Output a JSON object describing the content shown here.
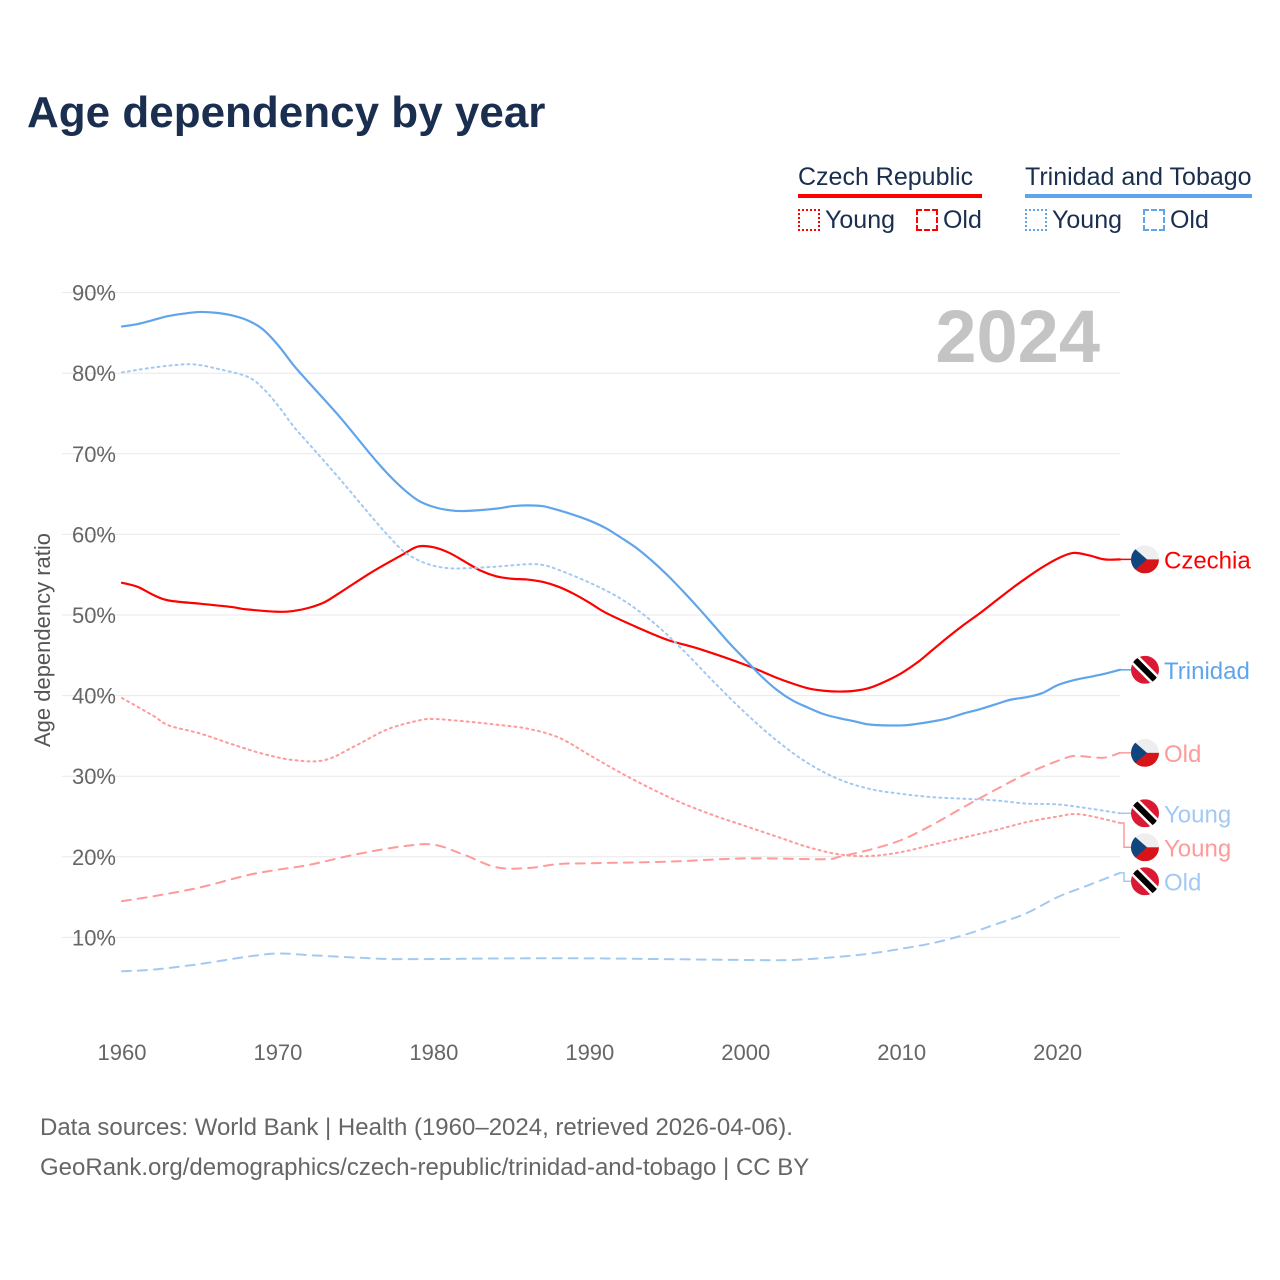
{
  "title": "Age dependency by year",
  "year_badge": "2024",
  "legend": {
    "groups": [
      {
        "name": "Czech Republic",
        "color": "#ff0000",
        "items": [
          {
            "label": "Young",
            "style": "dotted"
          },
          {
            "label": "Old",
            "style": "dashed"
          }
        ]
      },
      {
        "name": "Trinidad and Tobago",
        "color": "#60a5ec",
        "items": [
          {
            "label": "Young",
            "style": "dotted"
          },
          {
            "label": "Old",
            "style": "dashed"
          }
        ]
      }
    ]
  },
  "footer": {
    "line1": "Data sources: World Bank | Health (1960–2024, retrieved 2026-04-06).",
    "line2": "GeoRank.org/demographics/czech-republic/trinidad-and-tobago | CC BY"
  },
  "chart_data": {
    "type": "line",
    "title": "Age dependency by year",
    "xlabel": "",
    "ylabel": "Age dependency ratio",
    "xlim": [
      1960,
      2024
    ],
    "ylim": [
      0,
      90
    ],
    "xticks": [
      1960,
      1970,
      1980,
      1990,
      2000,
      2010,
      2020
    ],
    "yticks": [
      10,
      20,
      30,
      40,
      50,
      60,
      70,
      80,
      90
    ],
    "ytick_labels": [
      "10%",
      "20%",
      "30%",
      "40%",
      "50%",
      "60%",
      "70%",
      "80%",
      "90%"
    ],
    "grid": true,
    "series": [
      {
        "name": "Czechia",
        "label": "Czechia",
        "flag": "cz",
        "color": "#ff0000",
        "style": "solid",
        "width": 2.2,
        "points": [
          [
            1960,
            54
          ],
          [
            1961,
            53.5
          ],
          [
            1962,
            52.5
          ],
          [
            1963,
            51.8
          ],
          [
            1965,
            51.4
          ],
          [
            1967,
            51
          ],
          [
            1968,
            50.7
          ],
          [
            1970,
            50.4
          ],
          [
            1971,
            50.5
          ],
          [
            1972,
            50.9
          ],
          [
            1973,
            51.6
          ],
          [
            1974,
            52.8
          ],
          [
            1976,
            55.3
          ],
          [
            1978,
            57.5
          ],
          [
            1979,
            58.5
          ],
          [
            1980,
            58.4
          ],
          [
            1981,
            57.7
          ],
          [
            1982,
            56.6
          ],
          [
            1983,
            55.5
          ],
          [
            1984,
            54.8
          ],
          [
            1985,
            54.5
          ],
          [
            1986,
            54.4
          ],
          [
            1987,
            54.1
          ],
          [
            1988,
            53.5
          ],
          [
            1989,
            52.6
          ],
          [
            1990,
            51.5
          ],
          [
            1991,
            50.3
          ],
          [
            1993,
            48.5
          ],
          [
            1995,
            46.9
          ],
          [
            1997,
            45.8
          ],
          [
            2000,
            43.8
          ],
          [
            2002,
            42.2
          ],
          [
            2003,
            41.5
          ],
          [
            2004,
            40.9
          ],
          [
            2005,
            40.6
          ],
          [
            2006,
            40.5
          ],
          [
            2007,
            40.6
          ],
          [
            2008,
            41
          ],
          [
            2009,
            41.8
          ],
          [
            2010,
            42.8
          ],
          [
            2011,
            44.1
          ],
          [
            2012,
            45.7
          ],
          [
            2013,
            47.3
          ],
          [
            2014,
            48.8
          ],
          [
            2015,
            50.2
          ],
          [
            2016,
            51.7
          ],
          [
            2017,
            53.2
          ],
          [
            2018,
            54.6
          ],
          [
            2019,
            55.9
          ],
          [
            2020,
            57
          ],
          [
            2021,
            57.7
          ],
          [
            2022,
            57.4
          ],
          [
            2023,
            56.9
          ],
          [
            2024,
            56.9
          ]
        ]
      },
      {
        "name": "Trinidad and Tobago",
        "label": "Trinidad",
        "flag": "tt",
        "color": "#60a5ec",
        "style": "solid",
        "width": 2.2,
        "points": [
          [
            1960,
            85.8
          ],
          [
            1961,
            86.1
          ],
          [
            1962,
            86.6
          ],
          [
            1963,
            87.1
          ],
          [
            1964,
            87.4
          ],
          [
            1965,
            87.6
          ],
          [
            1966,
            87.5
          ],
          [
            1967,
            87.2
          ],
          [
            1968,
            86.6
          ],
          [
            1969,
            85.5
          ],
          [
            1970,
            83.5
          ],
          [
            1971,
            81
          ],
          [
            1972,
            78.8
          ],
          [
            1974,
            74.5
          ],
          [
            1976,
            69.8
          ],
          [
            1977,
            67.6
          ],
          [
            1978,
            65.7
          ],
          [
            1979,
            64.2
          ],
          [
            1980,
            63.4
          ],
          [
            1981,
            63
          ],
          [
            1982,
            62.9
          ],
          [
            1984,
            63.2
          ],
          [
            1985,
            63.5
          ],
          [
            1986,
            63.6
          ],
          [
            1987,
            63.5
          ],
          [
            1988,
            63
          ],
          [
            1989,
            62.4
          ],
          [
            1990,
            61.7
          ],
          [
            1991,
            60.8
          ],
          [
            1992,
            59.6
          ],
          [
            1993,
            58.3
          ],
          [
            1994,
            56.7
          ],
          [
            1995,
            54.9
          ],
          [
            1996,
            52.9
          ],
          [
            1997,
            50.8
          ],
          [
            1998,
            48.6
          ],
          [
            1999,
            46.4
          ],
          [
            2000,
            44.4
          ],
          [
            2001,
            42.4
          ],
          [
            2002,
            40.7
          ],
          [
            2003,
            39.4
          ],
          [
            2004,
            38.5
          ],
          [
            2005,
            37.7
          ],
          [
            2006,
            37.2
          ],
          [
            2007,
            36.8
          ],
          [
            2008,
            36.4
          ],
          [
            2010,
            36.3
          ],
          [
            2011,
            36.5
          ],
          [
            2012,
            36.8
          ],
          [
            2013,
            37.2
          ],
          [
            2014,
            37.8
          ],
          [
            2015,
            38.3
          ],
          [
            2016,
            38.9
          ],
          [
            2017,
            39.5
          ],
          [
            2018,
            39.8
          ],
          [
            2019,
            40.3
          ],
          [
            2020,
            41.3
          ],
          [
            2021,
            41.9
          ],
          [
            2022,
            42.3
          ],
          [
            2023,
            42.7
          ],
          [
            2024,
            43.2
          ]
        ]
      },
      {
        "name": "Czech Republic Old",
        "label": "Old",
        "flag": "cz",
        "color": "#ff9a9a",
        "style": "dashed",
        "width": 2,
        "points": [
          [
            1960,
            14.5
          ],
          [
            1962,
            15.1
          ],
          [
            1965,
            16.2
          ],
          [
            1968,
            17.7
          ],
          [
            1970,
            18.4
          ],
          [
            1972,
            19
          ],
          [
            1975,
            20.3
          ],
          [
            1978,
            21.3
          ],
          [
            1980,
            21.5
          ],
          [
            1982,
            20.2
          ],
          [
            1984,
            18.7
          ],
          [
            1986,
            18.6
          ],
          [
            1988,
            19.1
          ],
          [
            1990,
            19.2
          ],
          [
            1995,
            19.4
          ],
          [
            2000,
            19.8
          ],
          [
            2005,
            19.7
          ],
          [
            2006,
            20
          ],
          [
            2008,
            20.9
          ],
          [
            2010,
            22.1
          ],
          [
            2012,
            24
          ],
          [
            2014,
            26.2
          ],
          [
            2016,
            28.3
          ],
          [
            2018,
            30.3
          ],
          [
            2020,
            31.9
          ],
          [
            2021,
            32.5
          ],
          [
            2022,
            32.4
          ],
          [
            2023,
            32.3
          ],
          [
            2024,
            32.9
          ]
        ]
      },
      {
        "name": "Trinidad and Tobago Young",
        "label": "Young",
        "flag": "tt",
        "color": "#a3c9f3",
        "style": "dotted",
        "width": 2,
        "points": [
          [
            1960,
            80.1
          ],
          [
            1962,
            80.7
          ],
          [
            1964,
            81.1
          ],
          [
            1965,
            81
          ],
          [
            1966,
            80.6
          ],
          [
            1968,
            79.6
          ],
          [
            1969,
            78.2
          ],
          [
            1970,
            76
          ],
          [
            1971,
            73.4
          ],
          [
            1972,
            71.2
          ],
          [
            1974,
            66.8
          ],
          [
            1976,
            62.2
          ],
          [
            1977,
            60
          ],
          [
            1978,
            58
          ],
          [
            1979,
            56.8
          ],
          [
            1980,
            56.1
          ],
          [
            1981,
            55.8
          ],
          [
            1982,
            55.8
          ],
          [
            1984,
            56
          ],
          [
            1986,
            56.3
          ],
          [
            1987,
            56.2
          ],
          [
            1988,
            55.6
          ],
          [
            1990,
            54
          ],
          [
            1992,
            52
          ],
          [
            1994,
            49.2
          ],
          [
            1996,
            45.6
          ],
          [
            1998,
            41.6
          ],
          [
            2000,
            37.8
          ],
          [
            2002,
            34.4
          ],
          [
            2004,
            31.6
          ],
          [
            2006,
            29.6
          ],
          [
            2008,
            28.4
          ],
          [
            2010,
            27.8
          ],
          [
            2012,
            27.4
          ],
          [
            2014,
            27.2
          ],
          [
            2016,
            27
          ],
          [
            2018,
            26.6
          ],
          [
            2020,
            26.5
          ],
          [
            2022,
            26
          ],
          [
            2024,
            25.4
          ]
        ]
      },
      {
        "name": "Czech Republic Young",
        "label": "Young",
        "flag": "cz",
        "color": "#ff9a9a",
        "style": "dotted",
        "width": 2,
        "points": [
          [
            1960,
            39.7
          ],
          [
            1962,
            37.5
          ],
          [
            1963,
            36.3
          ],
          [
            1965,
            35.3
          ],
          [
            1967,
            34
          ],
          [
            1969,
            32.8
          ],
          [
            1971,
            32
          ],
          [
            1973,
            32
          ],
          [
            1975,
            33.8
          ],
          [
            1977,
            35.8
          ],
          [
            1979,
            36.9
          ],
          [
            1980,
            37.1
          ],
          [
            1982,
            36.8
          ],
          [
            1984,
            36.4
          ],
          [
            1986,
            35.9
          ],
          [
            1988,
            34.8
          ],
          [
            1990,
            32.6
          ],
          [
            1992,
            30.4
          ],
          [
            1994,
            28.4
          ],
          [
            1996,
            26.6
          ],
          [
            1998,
            25.1
          ],
          [
            2000,
            23.8
          ],
          [
            2002,
            22.5
          ],
          [
            2004,
            21.2
          ],
          [
            2006,
            20.3
          ],
          [
            2008,
            20.1
          ],
          [
            2010,
            20.6
          ],
          [
            2012,
            21.5
          ],
          [
            2014,
            22.4
          ],
          [
            2016,
            23.3
          ],
          [
            2018,
            24.3
          ],
          [
            2020,
            25
          ],
          [
            2021,
            25.3
          ],
          [
            2022,
            25.1
          ],
          [
            2024,
            24.2
          ]
        ]
      },
      {
        "name": "Trinidad and Tobago Old",
        "label": "Old",
        "flag": "tt",
        "color": "#a3c9f3",
        "style": "dashed",
        "width": 2,
        "points": [
          [
            1960,
            5.8
          ],
          [
            1962,
            6
          ],
          [
            1965,
            6.7
          ],
          [
            1968,
            7.6
          ],
          [
            1970,
            8
          ],
          [
            1972,
            7.8
          ],
          [
            1975,
            7.5
          ],
          [
            1978,
            7.3
          ],
          [
            1985,
            7.4
          ],
          [
            1990,
            7.4
          ],
          [
            1995,
            7.3
          ],
          [
            2000,
            7.2
          ],
          [
            2003,
            7.2
          ],
          [
            2006,
            7.6
          ],
          [
            2008,
            8
          ],
          [
            2010,
            8.6
          ],
          [
            2012,
            9.3
          ],
          [
            2014,
            10.3
          ],
          [
            2016,
            11.6
          ],
          [
            2018,
            13
          ],
          [
            2020,
            15
          ],
          [
            2022,
            16.5
          ],
          [
            2024,
            18
          ]
        ]
      }
    ]
  }
}
